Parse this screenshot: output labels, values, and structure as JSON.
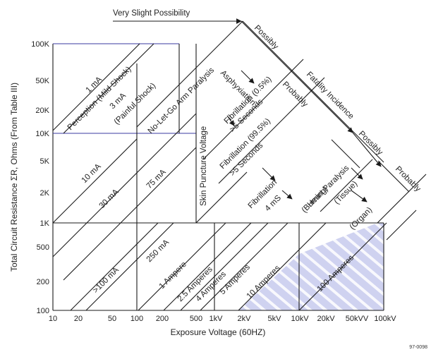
{
  "diagram": {
    "top_label": "Very Slight Possibility",
    "y_axis_title": "Total Circuit Resistance ΣR, Ohms (From Table III)",
    "x_axis_title": "Exposure Voltage (60HZ)",
    "y_ticks": [
      "100K",
      "50K",
      "20K",
      "10K",
      "5K",
      "2K",
      "1K",
      "500",
      "200",
      "100"
    ],
    "x_ticks": [
      "10",
      "20",
      "50",
      "100",
      "200",
      "500",
      "1kV",
      "2kV",
      "5kV",
      "10kV",
      "20kV",
      "50kVV",
      "100kV"
    ],
    "current_labels": {
      "ma1": "1 mA",
      "ma1_desc": "Perception (Mild Shock)",
      "ma3": "3 mA",
      "ma3_desc": "(Painful Shock)",
      "ma10": "10 mA",
      "ma30": "30 mA",
      "ma75": "75 mA",
      "ma100": ">100 mA",
      "ma250": "250 mA",
      "a1": "1 Ampere",
      "a25": "2.5 Amperes",
      "a4": "4 Amperes",
      "a5": "5 Amperes",
      "a10": "10 Amperes",
      "a100": "100 Amperes"
    },
    "effect_labels": {
      "no_let_go": "No-Let-Go Arm Paralysis",
      "asphyxiation": "Asphyxiation",
      "fib05": "Fibrillation (0.5%)",
      "fib05_time": ">5 Seconds",
      "fib995": "Fibrillation (99.5%)",
      "fib995_time": ">5 Seconds",
      "fib4": "Fibrillation",
      "fib4_time": "4 mS",
      "skin": "Skin Puncture Voltage",
      "heart": "Heart Paralysis",
      "burning": "(Burning)",
      "tissue": "(Tissue)",
      "organ": "(Organ)"
    },
    "fatality_labels": {
      "possibly1": "Possibly",
      "fatality": "Fatality Incidence",
      "probably1": "Probably",
      "possibly2": "Possibly",
      "probably2": "Probably"
    },
    "figure_id": "97-0098",
    "colors": {
      "line": "#1a1a1a",
      "blue_line": "#3a3aa0",
      "shade": "#cfd2f0",
      "shade_stripe": "#ffffff"
    }
  }
}
